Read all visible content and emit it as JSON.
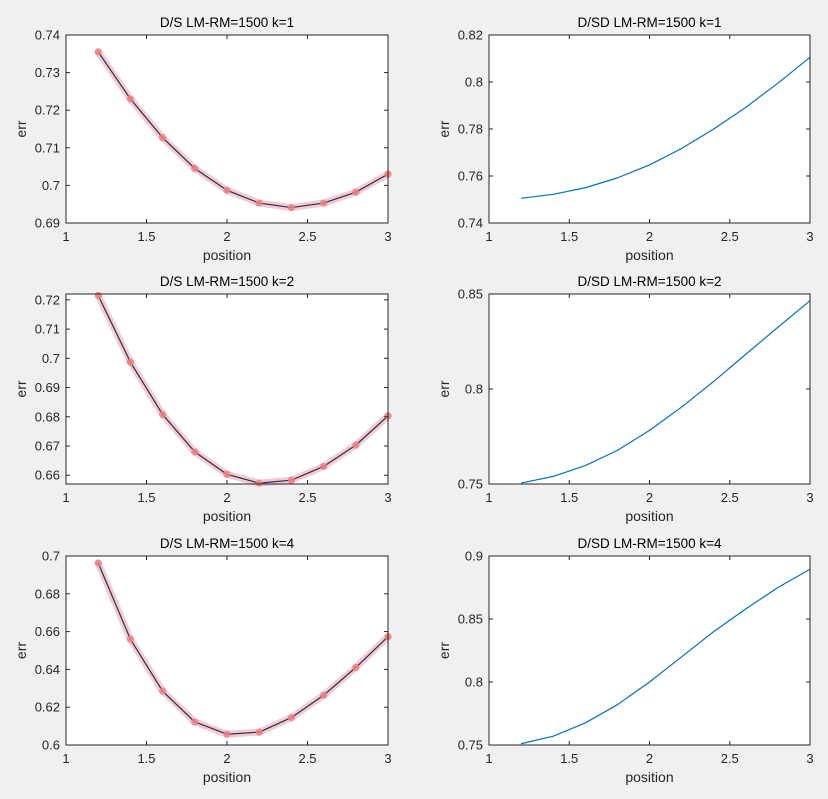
{
  "figure": {
    "background": "#f0f0f0",
    "colors": {
      "dark_line": "#2c2c48",
      "highlight": "#e8a0b0",
      "marker": "#f08080",
      "blue_line": "#0072bd"
    }
  },
  "chart_data": [
    {
      "type": "line",
      "style": "marker-highlight",
      "title": "D/S LM-RM=1500 k=1",
      "xlabel": "position",
      "ylabel": "err",
      "xlim": [
        1,
        3
      ],
      "ylim": [
        0.69,
        0.74
      ],
      "xticks": [
        1,
        1.5,
        2,
        2.5,
        3
      ],
      "xtick_labels": [
        "1",
        "1.5",
        "2",
        "2.5",
        "3"
      ],
      "yticks": [
        0.69,
        0.7,
        0.71,
        0.72,
        0.73,
        0.74
      ],
      "ytick_labels": [
        "0.69",
        "0.7",
        "0.71",
        "0.72",
        "0.73",
        "0.74"
      ],
      "x": [
        1.2,
        1.4,
        1.6,
        1.8,
        2.0,
        2.2,
        2.4,
        2.6,
        2.8,
        3.0
      ],
      "y": [
        0.7355,
        0.723,
        0.7127,
        0.7045,
        0.6987,
        0.6953,
        0.6941,
        0.6953,
        0.6982,
        0.703
      ]
    },
    {
      "type": "line",
      "style": "plain",
      "title": "D/SD LM-RM=1500 k=1",
      "xlabel": "position",
      "ylabel": "err",
      "xlim": [
        1,
        3
      ],
      "ylim": [
        0.74,
        0.82
      ],
      "xticks": [
        1,
        1.5,
        2,
        2.5,
        3
      ],
      "xtick_labels": [
        "1",
        "1.5",
        "2",
        "2.5",
        "3"
      ],
      "yticks": [
        0.74,
        0.76,
        0.78,
        0.8,
        0.82
      ],
      "ytick_labels": [
        "0.74",
        "0.76",
        "0.78",
        "0.8",
        "0.82"
      ],
      "x": [
        1.2,
        1.4,
        1.6,
        1.8,
        2.0,
        2.2,
        2.4,
        2.6,
        2.8,
        3.0
      ],
      "y": [
        0.7505,
        0.7522,
        0.755,
        0.7592,
        0.7647,
        0.7717,
        0.78,
        0.7892,
        0.7995,
        0.8105
      ]
    },
    {
      "type": "line",
      "style": "marker-highlight",
      "title": "D/S LM-RM=1500 k=2",
      "xlabel": "position",
      "ylabel": "err",
      "xlim": [
        1,
        3
      ],
      "ylim": [
        0.657,
        0.722
      ],
      "xticks": [
        1,
        1.5,
        2,
        2.5,
        3
      ],
      "xtick_labels": [
        "1",
        "1.5",
        "2",
        "2.5",
        "3"
      ],
      "yticks": [
        0.66,
        0.67,
        0.68,
        0.69,
        0.7,
        0.71,
        0.72
      ],
      "ytick_labels": [
        "0.66",
        "0.67",
        "0.68",
        "0.69",
        "0.7",
        "0.71",
        "0.72"
      ],
      "x": [
        1.2,
        1.4,
        1.6,
        1.8,
        2.0,
        2.2,
        2.4,
        2.6,
        2.8,
        3.0
      ],
      "y": [
        0.7215,
        0.6987,
        0.6808,
        0.668,
        0.6603,
        0.6573,
        0.6583,
        0.663,
        0.6703,
        0.6803
      ]
    },
    {
      "type": "line",
      "style": "plain",
      "title": "D/SD LM-RM=1500 k=2",
      "xlabel": "position",
      "ylabel": "err",
      "xlim": [
        1,
        3
      ],
      "ylim": [
        0.75,
        0.85
      ],
      "xticks": [
        1,
        1.5,
        2,
        2.5,
        3
      ],
      "xtick_labels": [
        "1",
        "1.5",
        "2",
        "2.5",
        "3"
      ],
      "yticks": [
        0.75,
        0.8,
        0.85
      ],
      "ytick_labels": [
        "0.75",
        "0.8",
        "0.85"
      ],
      "x": [
        1.2,
        1.4,
        1.6,
        1.8,
        2.0,
        2.2,
        2.4,
        2.6,
        2.8,
        3.0
      ],
      "y": [
        0.7505,
        0.754,
        0.7597,
        0.7677,
        0.7782,
        0.7905,
        0.804,
        0.8183,
        0.8325,
        0.8465
      ]
    },
    {
      "type": "line",
      "style": "marker-highlight",
      "title": "D/S LM-RM=1500 k=4",
      "xlabel": "position",
      "ylabel": "err",
      "xlim": [
        1,
        3
      ],
      "ylim": [
        0.6,
        0.7
      ],
      "xticks": [
        1,
        1.5,
        2,
        2.5,
        3
      ],
      "xtick_labels": [
        "1",
        "1.5",
        "2",
        "2.5",
        "3"
      ],
      "yticks": [
        0.6,
        0.62,
        0.64,
        0.66,
        0.68,
        0.7
      ],
      "ytick_labels": [
        "0.6",
        "0.62",
        "0.64",
        "0.66",
        "0.68",
        "0.7"
      ],
      "x": [
        1.2,
        1.4,
        1.6,
        1.8,
        2.0,
        2.2,
        2.4,
        2.6,
        2.8,
        3.0
      ],
      "y": [
        0.6963,
        0.656,
        0.6285,
        0.6122,
        0.6057,
        0.6068,
        0.6145,
        0.6263,
        0.641,
        0.6573
      ]
    },
    {
      "type": "line",
      "style": "plain",
      "title": "D/SD LM-RM=1500 k=4",
      "xlabel": "position",
      "ylabel": "err",
      "xlim": [
        1,
        3
      ],
      "ylim": [
        0.75,
        0.9
      ],
      "xticks": [
        1,
        1.5,
        2,
        2.5,
        3
      ],
      "xtick_labels": [
        "1",
        "1.5",
        "2",
        "2.5",
        "3"
      ],
      "yticks": [
        0.75,
        0.8,
        0.85,
        0.9
      ],
      "ytick_labels": [
        "0.75",
        "0.8",
        "0.85",
        "0.9"
      ],
      "x": [
        1.2,
        1.4,
        1.6,
        1.8,
        2.0,
        2.2,
        2.4,
        2.6,
        2.8,
        3.0
      ],
      "y": [
        0.751,
        0.757,
        0.7675,
        0.782,
        0.8,
        0.82,
        0.84,
        0.858,
        0.875,
        0.8895
      ]
    }
  ]
}
